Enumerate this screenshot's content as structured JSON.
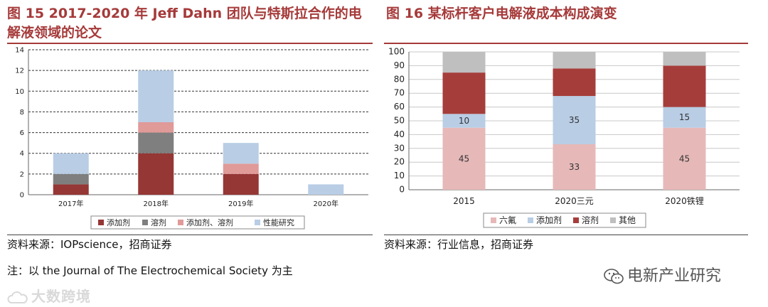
{
  "figure15": {
    "title": "图 15 2017-2020 年 Jeff Dahn 团队与特斯拉合作的电解液领域的论文",
    "source": "资料来源：IOPscience，招商证券",
    "note": "注：以 the Journal of The Electrochemical Society 为主"
  },
  "figure16": {
    "title": "图 16 某标杆客户电解液成本构成演变",
    "source": "资料来源：行业信息，招商证券"
  },
  "watermarks": {
    "left": "大数跨境",
    "right": "电新产业研究"
  },
  "chart_data": [
    {
      "type": "bar",
      "stacked": true,
      "title": "",
      "categories": [
        "2017年",
        "2018年",
        "2019年",
        "2020年"
      ],
      "series": [
        {
          "name": "添加剂",
          "values": [
            1,
            4,
            2,
            0
          ],
          "color": "#953735"
        },
        {
          "name": "溶剂",
          "values": [
            1,
            2,
            0,
            0
          ],
          "color": "#7f7f7f"
        },
        {
          "name": "添加剂、溶剂",
          "values": [
            0,
            1,
            1,
            0
          ],
          "color": "#e09a98"
        },
        {
          "name": "性能研究",
          "values": [
            2,
            5,
            2,
            1
          ],
          "color": "#b9cde5"
        }
      ],
      "ylim": [
        0,
        14
      ],
      "yticks": [
        0,
        2,
        4,
        6,
        8,
        10,
        12,
        14
      ],
      "grid": "dashed",
      "legend": "bottom"
    },
    {
      "type": "bar",
      "stacked": true,
      "title": "",
      "categories": [
        "2015",
        "2020三元",
        "2020铁锂"
      ],
      "series": [
        {
          "name": "六氟",
          "values": [
            45,
            33,
            45
          ],
          "color": "#e6b9b8"
        },
        {
          "name": "添加剂",
          "values": [
            10,
            35,
            15
          ],
          "color": "#b9cde5"
        },
        {
          "name": "溶剂",
          "values": [
            30,
            20,
            30
          ],
          "color": "#a53e3b"
        },
        {
          "name": "其他",
          "values": [
            15,
            12,
            10
          ],
          "color": "#bfbfbf"
        }
      ],
      "labels": {
        "六氟": [
          "45",
          "33",
          "45"
        ],
        "添加剂": [
          "10",
          "35",
          "15"
        ]
      },
      "ylim": [
        0,
        100
      ],
      "yticks": [
        0,
        10,
        20,
        30,
        40,
        50,
        60,
        70,
        80,
        90,
        100
      ],
      "grid": "solid",
      "legend": "bottom"
    }
  ]
}
